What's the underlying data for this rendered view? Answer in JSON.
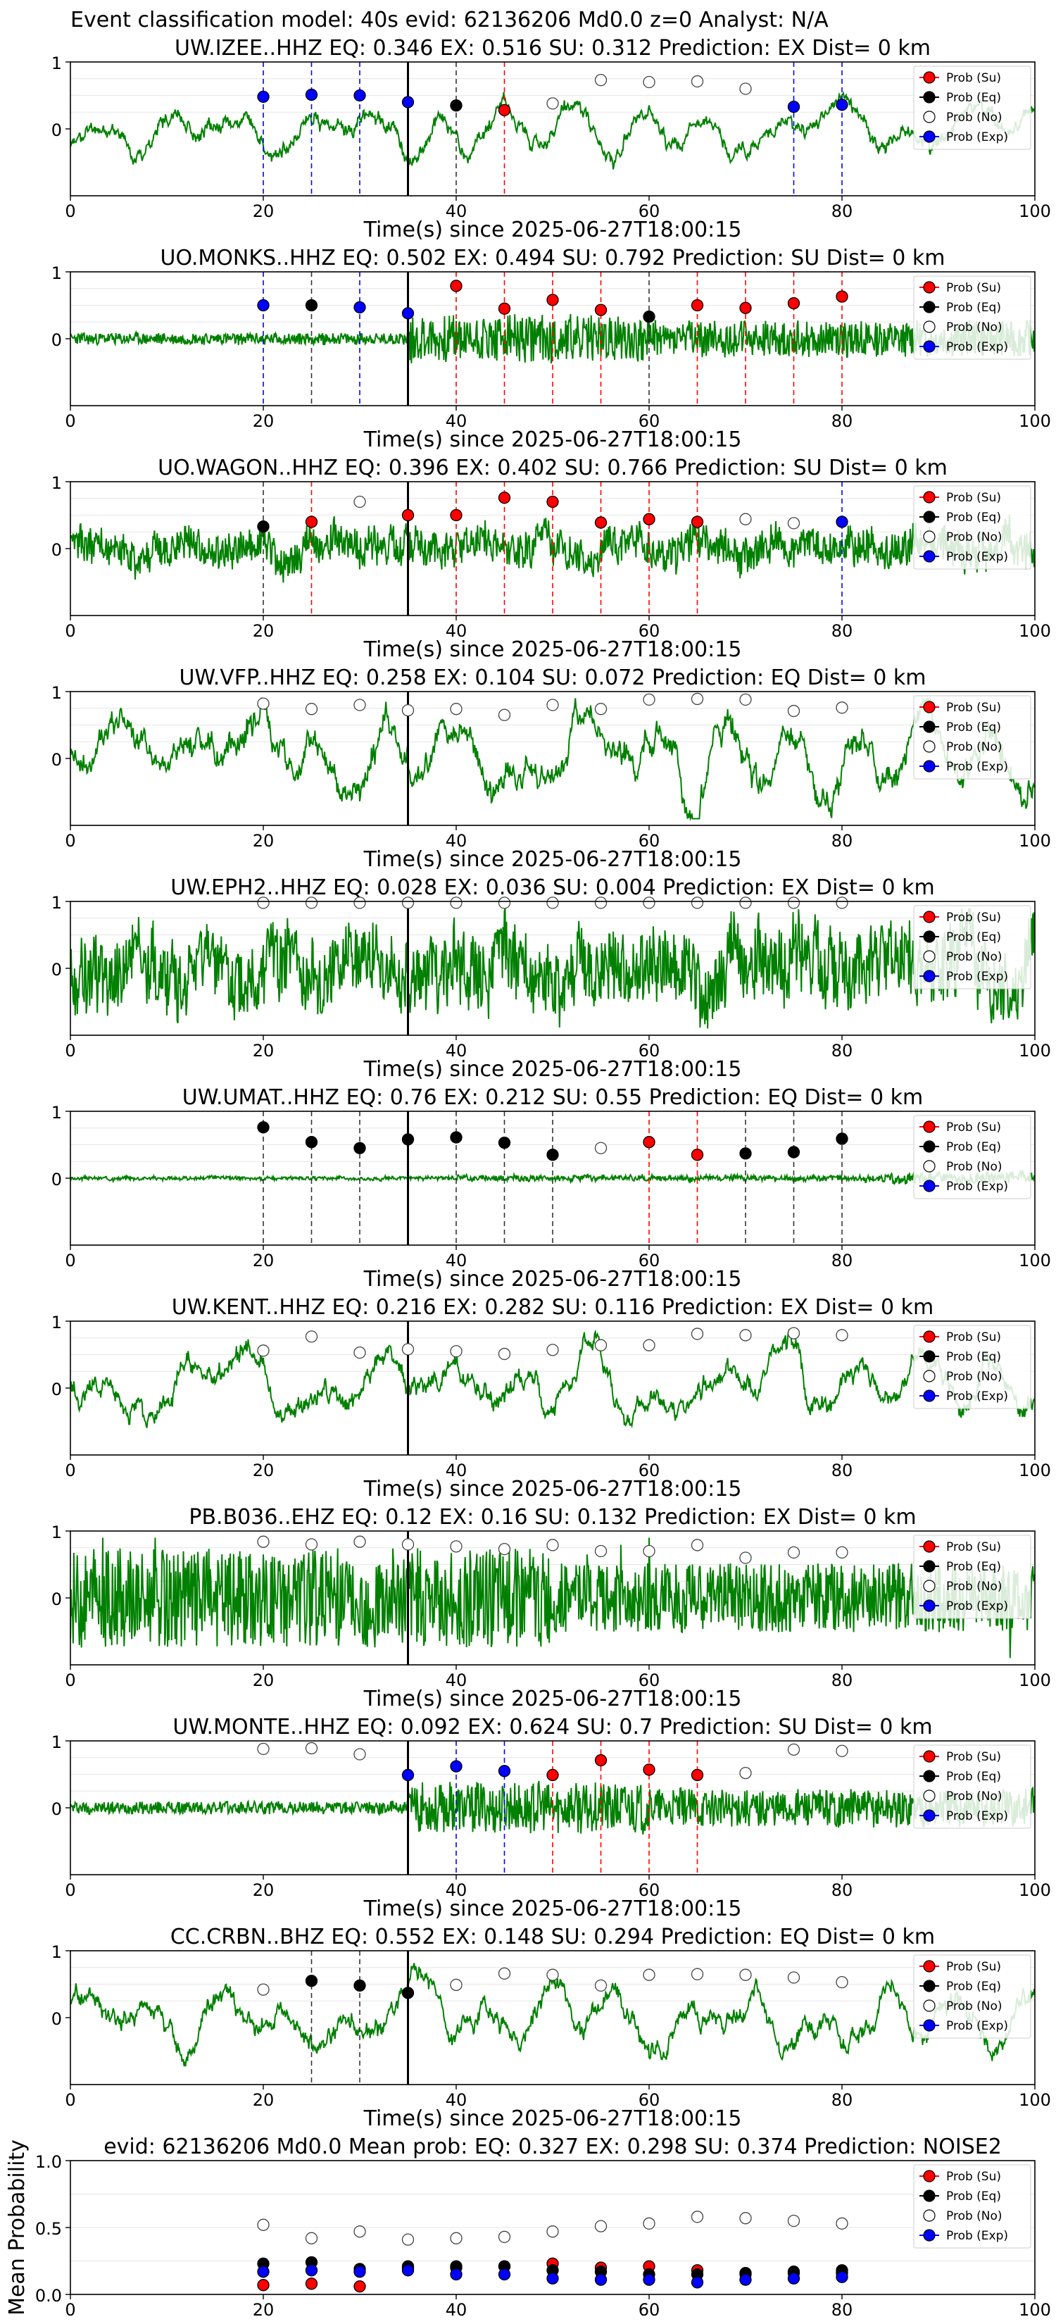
{
  "figure_title": "Event classification model: 40s evid: 62136206 Md0.0 z=0 Analyst: N/A",
  "xlabel": "Time(s) since 2025-06-27T18:00:15",
  "legend": [
    "Prob (Su)",
    "Prob (Eq)",
    "Prob (No)",
    "Prob (Exp)"
  ],
  "colors": {
    "Su": "#ff0000",
    "Eq": "#000000",
    "No": "#ffffff",
    "Exp": "#0000ff",
    "trace": "#008000",
    "origin_line": "#000000"
  },
  "chart_data": [
    {
      "type": "line",
      "title": "UW.IZEE..HHZ   EQ: 0.346  EX: 0.516  SU: 0.312   Prediction: EX    Dist= 0 km",
      "xlim": [
        0,
        100
      ],
      "ylim": [
        -1,
        1
      ],
      "xticks": [
        "0",
        "20",
        "40",
        "60",
        "80",
        "100"
      ],
      "yticks": [
        "1",
        "0"
      ],
      "origin_time": 35,
      "trace_style": "smooth",
      "seed": 11,
      "amp": 0.42,
      "points": [
        {
          "t": 20,
          "cls": "Exp",
          "p": 0.48
        },
        {
          "t": 25,
          "cls": "Exp",
          "p": 0.51
        },
        {
          "t": 30,
          "cls": "Exp",
          "p": 0.5
        },
        {
          "t": 35,
          "cls": "Exp",
          "p": 0.4
        },
        {
          "t": 40,
          "cls": "Eq",
          "p": 0.35
        },
        {
          "t": 45,
          "cls": "Su",
          "p": 0.28
        },
        {
          "t": 50,
          "cls": "No",
          "p": 0.38
        },
        {
          "t": 55,
          "cls": "No",
          "p": 0.73
        },
        {
          "t": 60,
          "cls": "No",
          "p": 0.7
        },
        {
          "t": 65,
          "cls": "No",
          "p": 0.71
        },
        {
          "t": 70,
          "cls": "No",
          "p": 0.6
        },
        {
          "t": 75,
          "cls": "Exp",
          "p": 0.33
        },
        {
          "t": 80,
          "cls": "Exp",
          "p": 0.36
        }
      ]
    },
    {
      "type": "line",
      "title": "UO.MONKS..HHZ   EQ: 0.502  EX: 0.494  SU: 0.792   Prediction: SU    Dist= 0 km",
      "xlim": [
        0,
        100
      ],
      "ylim": [
        -1,
        1
      ],
      "xticks": [
        "0",
        "20",
        "40",
        "60",
        "80",
        "100"
      ],
      "yticks": [
        "1",
        "0"
      ],
      "origin_time": 35,
      "trace_style": "burst",
      "seed": 23,
      "amp": 0.3,
      "points": [
        {
          "t": 20,
          "cls": "Exp",
          "p": 0.5
        },
        {
          "t": 25,
          "cls": "Eq",
          "p": 0.5
        },
        {
          "t": 30,
          "cls": "Exp",
          "p": 0.47
        },
        {
          "t": 35,
          "cls": "Exp",
          "p": 0.38
        },
        {
          "t": 40,
          "cls": "Su",
          "p": 0.79
        },
        {
          "t": 45,
          "cls": "Su",
          "p": 0.45
        },
        {
          "t": 50,
          "cls": "Su",
          "p": 0.58
        },
        {
          "t": 55,
          "cls": "Su",
          "p": 0.43
        },
        {
          "t": 60,
          "cls": "Eq",
          "p": 0.33
        },
        {
          "t": 65,
          "cls": "Su",
          "p": 0.5
        },
        {
          "t": 70,
          "cls": "Su",
          "p": 0.46
        },
        {
          "t": 75,
          "cls": "Su",
          "p": 0.53
        },
        {
          "t": 80,
          "cls": "Su",
          "p": 0.63
        }
      ]
    },
    {
      "type": "line",
      "title": "UO.WAGON..HHZ   EQ: 0.396  EX: 0.402  SU: 0.766   Prediction: SU    Dist= 0 km",
      "xlim": [
        0,
        100
      ],
      "ylim": [
        -1,
        1
      ],
      "xticks": [
        "0",
        "20",
        "40",
        "60",
        "80",
        "100"
      ],
      "yticks": [
        "1",
        "0"
      ],
      "origin_time": 35,
      "trace_style": "noisy",
      "seed": 37,
      "amp": 0.34,
      "points": [
        {
          "t": 20,
          "cls": "Eq",
          "p": 0.33
        },
        {
          "t": 25,
          "cls": "Su",
          "p": 0.4
        },
        {
          "t": 30,
          "cls": "No",
          "p": 0.7
        },
        {
          "t": 35,
          "cls": "Su",
          "p": 0.5
        },
        {
          "t": 40,
          "cls": "Su",
          "p": 0.5
        },
        {
          "t": 45,
          "cls": "Su",
          "p": 0.76
        },
        {
          "t": 50,
          "cls": "Su",
          "p": 0.7
        },
        {
          "t": 55,
          "cls": "Su",
          "p": 0.39
        },
        {
          "t": 60,
          "cls": "Su",
          "p": 0.44
        },
        {
          "t": 65,
          "cls": "Su",
          "p": 0.4
        },
        {
          "t": 70,
          "cls": "No",
          "p": 0.44
        },
        {
          "t": 75,
          "cls": "No",
          "p": 0.38
        },
        {
          "t": 80,
          "cls": "Exp",
          "p": 0.4
        }
      ]
    },
    {
      "type": "line",
      "title": "UW.VFP..HHZ   EQ: 0.258  EX: 0.104  SU: 0.072   Prediction: EQ    Dist= 0 km",
      "xlim": [
        0,
        100
      ],
      "ylim": [
        -1,
        1
      ],
      "xticks": [
        "0",
        "20",
        "40",
        "60",
        "80",
        "100"
      ],
      "yticks": [
        "1",
        "0"
      ],
      "origin_time": 35,
      "trace_style": "smooth",
      "seed": 41,
      "amp": 0.8,
      "points": [
        {
          "t": 20,
          "cls": "No",
          "p": 0.82
        },
        {
          "t": 25,
          "cls": "No",
          "p": 0.74
        },
        {
          "t": 30,
          "cls": "No",
          "p": 0.8
        },
        {
          "t": 35,
          "cls": "No",
          "p": 0.72
        },
        {
          "t": 40,
          "cls": "No",
          "p": 0.74
        },
        {
          "t": 45,
          "cls": "No",
          "p": 0.65
        },
        {
          "t": 50,
          "cls": "No",
          "p": 0.8
        },
        {
          "t": 55,
          "cls": "No",
          "p": 0.74
        },
        {
          "t": 60,
          "cls": "No",
          "p": 0.88
        },
        {
          "t": 65,
          "cls": "No",
          "p": 0.89
        },
        {
          "t": 70,
          "cls": "No",
          "p": 0.88
        },
        {
          "t": 75,
          "cls": "No",
          "p": 0.71
        },
        {
          "t": 80,
          "cls": "No",
          "p": 0.76
        }
      ]
    },
    {
      "type": "line",
      "title": "UW.EPH2..HHZ   EQ: 0.028  EX: 0.036  SU: 0.004   Prediction: EX    Dist= 0 km",
      "xlim": [
        0,
        100
      ],
      "ylim": [
        -1,
        1
      ],
      "xticks": [
        "0",
        "20",
        "40",
        "60",
        "80",
        "100"
      ],
      "yticks": [
        "1",
        "0"
      ],
      "origin_time": 35,
      "trace_style": "noisy",
      "seed": 53,
      "amp": 0.7,
      "points": [
        {
          "t": 20,
          "cls": "No",
          "p": 0.98
        },
        {
          "t": 25,
          "cls": "No",
          "p": 0.98
        },
        {
          "t": 30,
          "cls": "No",
          "p": 0.98
        },
        {
          "t": 35,
          "cls": "No",
          "p": 0.98
        },
        {
          "t": 40,
          "cls": "No",
          "p": 0.98
        },
        {
          "t": 45,
          "cls": "No",
          "p": 0.98
        },
        {
          "t": 50,
          "cls": "No",
          "p": 0.98
        },
        {
          "t": 55,
          "cls": "No",
          "p": 0.98
        },
        {
          "t": 60,
          "cls": "No",
          "p": 0.98
        },
        {
          "t": 65,
          "cls": "No",
          "p": 0.98
        },
        {
          "t": 70,
          "cls": "No",
          "p": 0.98
        },
        {
          "t": 75,
          "cls": "No",
          "p": 0.98
        },
        {
          "t": 80,
          "cls": "No",
          "p": 0.98
        }
      ]
    },
    {
      "type": "line",
      "title": "UW.UMAT..HHZ   EQ: 0.76  EX: 0.212  SU: 0.55   Prediction: EQ    Dist= 0 km",
      "xlim": [
        0,
        100
      ],
      "ylim": [
        -1,
        1
      ],
      "xticks": [
        "0",
        "20",
        "40",
        "60",
        "80",
        "100"
      ],
      "yticks": [
        "1",
        "0"
      ],
      "origin_time": 35,
      "trace_style": "quiet",
      "seed": 67,
      "amp": 0.12,
      "points": [
        {
          "t": 20,
          "cls": "Eq",
          "p": 0.76
        },
        {
          "t": 25,
          "cls": "Eq",
          "p": 0.54
        },
        {
          "t": 30,
          "cls": "Eq",
          "p": 0.45
        },
        {
          "t": 35,
          "cls": "Eq",
          "p": 0.58
        },
        {
          "t": 40,
          "cls": "Eq",
          "p": 0.61
        },
        {
          "t": 45,
          "cls": "Eq",
          "p": 0.53
        },
        {
          "t": 50,
          "cls": "Eq",
          "p": 0.35
        },
        {
          "t": 55,
          "cls": "No",
          "p": 0.45
        },
        {
          "t": 60,
          "cls": "Su",
          "p": 0.54
        },
        {
          "t": 65,
          "cls": "Su",
          "p": 0.35
        },
        {
          "t": 70,
          "cls": "Eq",
          "p": 0.37
        },
        {
          "t": 75,
          "cls": "Eq",
          "p": 0.39
        },
        {
          "t": 80,
          "cls": "Eq",
          "p": 0.59
        }
      ]
    },
    {
      "type": "line",
      "title": "UW.KENT..HHZ   EQ: 0.216  EX: 0.282  SU: 0.116   Prediction: EX    Dist= 0 km",
      "xlim": [
        0,
        100
      ],
      "ylim": [
        -1,
        1
      ],
      "xticks": [
        "0",
        "20",
        "40",
        "60",
        "80",
        "100"
      ],
      "yticks": [
        "1",
        "0"
      ],
      "origin_time": 35,
      "trace_style": "smooth",
      "seed": 79,
      "amp": 0.6,
      "points": [
        {
          "t": 20,
          "cls": "No",
          "p": 0.56
        },
        {
          "t": 25,
          "cls": "No",
          "p": 0.77
        },
        {
          "t": 30,
          "cls": "No",
          "p": 0.53
        },
        {
          "t": 35,
          "cls": "No",
          "p": 0.58
        },
        {
          "t": 40,
          "cls": "No",
          "p": 0.55
        },
        {
          "t": 45,
          "cls": "No",
          "p": 0.51
        },
        {
          "t": 50,
          "cls": "No",
          "p": 0.57
        },
        {
          "t": 55,
          "cls": "No",
          "p": 0.64
        },
        {
          "t": 60,
          "cls": "No",
          "p": 0.64
        },
        {
          "t": 65,
          "cls": "No",
          "p": 0.81
        },
        {
          "t": 70,
          "cls": "No",
          "p": 0.79
        },
        {
          "t": 75,
          "cls": "No",
          "p": 0.82
        },
        {
          "t": 80,
          "cls": "No",
          "p": 0.79
        }
      ]
    },
    {
      "type": "line",
      "title": "PB.B036..EHZ   EQ: 0.12  EX: 0.16  SU: 0.132   Prediction: EX    Dist= 0 km",
      "xlim": [
        0,
        100
      ],
      "ylim": [
        -1,
        1
      ],
      "xticks": [
        "0",
        "20",
        "40",
        "60",
        "80",
        "100"
      ],
      "yticks": [
        "1",
        "0"
      ],
      "origin_time": 35,
      "trace_style": "spiky",
      "seed": 83,
      "amp": 0.75,
      "points": [
        {
          "t": 20,
          "cls": "No",
          "p": 0.84
        },
        {
          "t": 25,
          "cls": "No",
          "p": 0.8
        },
        {
          "t": 30,
          "cls": "No",
          "p": 0.84
        },
        {
          "t": 35,
          "cls": "No",
          "p": 0.8
        },
        {
          "t": 40,
          "cls": "No",
          "p": 0.77
        },
        {
          "t": 45,
          "cls": "No",
          "p": 0.73
        },
        {
          "t": 50,
          "cls": "No",
          "p": 0.79
        },
        {
          "t": 55,
          "cls": "No",
          "p": 0.7
        },
        {
          "t": 60,
          "cls": "No",
          "p": 0.7
        },
        {
          "t": 65,
          "cls": "No",
          "p": 0.79
        },
        {
          "t": 70,
          "cls": "No",
          "p": 0.6
        },
        {
          "t": 75,
          "cls": "No",
          "p": 0.68
        },
        {
          "t": 80,
          "cls": "No",
          "p": 0.68
        }
      ]
    },
    {
      "type": "line",
      "title": "UW.MONTE..HHZ   EQ: 0.092  EX: 0.624  SU: 0.7   Prediction: SU    Dist= 0 km",
      "xlim": [
        0,
        100
      ],
      "ylim": [
        -1,
        1
      ],
      "xticks": [
        "0",
        "20",
        "40",
        "60",
        "80",
        "100"
      ],
      "yticks": [
        "1",
        "0"
      ],
      "origin_time": 35,
      "trace_style": "burst",
      "seed": 97,
      "amp": 0.32,
      "points": [
        {
          "t": 20,
          "cls": "No",
          "p": 0.88
        },
        {
          "t": 25,
          "cls": "No",
          "p": 0.89
        },
        {
          "t": 30,
          "cls": "No",
          "p": 0.8
        },
        {
          "t": 35,
          "cls": "Exp",
          "p": 0.49
        },
        {
          "t": 40,
          "cls": "Exp",
          "p": 0.62
        },
        {
          "t": 45,
          "cls": "Exp",
          "p": 0.55
        },
        {
          "t": 50,
          "cls": "Su",
          "p": 0.49
        },
        {
          "t": 55,
          "cls": "Su",
          "p": 0.71
        },
        {
          "t": 60,
          "cls": "Su",
          "p": 0.57
        },
        {
          "t": 65,
          "cls": "Su",
          "p": 0.49
        },
        {
          "t": 70,
          "cls": "No",
          "p": 0.52
        },
        {
          "t": 75,
          "cls": "No",
          "p": 0.87
        },
        {
          "t": 80,
          "cls": "No",
          "p": 0.85
        }
      ]
    },
    {
      "type": "line",
      "title": "CC.CRBN..BHZ   EQ: 0.552  EX: 0.148  SU: 0.294   Prediction: EQ    Dist= 0 km",
      "xlim": [
        0,
        100
      ],
      "ylim": [
        -1,
        1
      ],
      "xticks": [
        "0",
        "20",
        "40",
        "60",
        "80",
        "100"
      ],
      "yticks": [
        "1",
        "0"
      ],
      "origin_time": 35,
      "trace_style": "smooth",
      "seed": 101,
      "amp": 0.55,
      "points": [
        {
          "t": 20,
          "cls": "No",
          "p": 0.42
        },
        {
          "t": 25,
          "cls": "Eq",
          "p": 0.55
        },
        {
          "t": 30,
          "cls": "Eq",
          "p": 0.48
        },
        {
          "t": 35,
          "cls": "Eq",
          "p": 0.37
        },
        {
          "t": 40,
          "cls": "No",
          "p": 0.49
        },
        {
          "t": 45,
          "cls": "No",
          "p": 0.66
        },
        {
          "t": 50,
          "cls": "No",
          "p": 0.64
        },
        {
          "t": 55,
          "cls": "No",
          "p": 0.48
        },
        {
          "t": 60,
          "cls": "No",
          "p": 0.64
        },
        {
          "t": 65,
          "cls": "No",
          "p": 0.65
        },
        {
          "t": 70,
          "cls": "No",
          "p": 0.64
        },
        {
          "t": 75,
          "cls": "No",
          "p": 0.6
        },
        {
          "t": 80,
          "cls": "No",
          "p": 0.53
        }
      ]
    },
    {
      "type": "scatter",
      "title": "evid: 62136206  Md0.0   Mean prob:   EQ: 0.327  EX: 0.298  SU: 0.374   Prediction: NOISE2",
      "ylabel": "Mean Probability",
      "xlim": [
        0,
        100
      ],
      "ylim": [
        0,
        1
      ],
      "xticks": [
        "0",
        "20",
        "40",
        "60",
        "80",
        "100"
      ],
      "yticks": [
        "1.0",
        "0.5",
        "0.0"
      ],
      "x": [
        20,
        25,
        30,
        35,
        40,
        45,
        50,
        55,
        60,
        65,
        70,
        75,
        80
      ],
      "series": [
        {
          "name": "Prob (Su)",
          "values": [
            0.07,
            0.08,
            0.06,
            0.2,
            0.2,
            0.21,
            0.23,
            0.2,
            0.21,
            0.18,
            0.15,
            0.16,
            0.16
          ]
        },
        {
          "name": "Prob (Eq)",
          "values": [
            0.23,
            0.24,
            0.19,
            0.21,
            0.21,
            0.21,
            0.18,
            0.17,
            0.15,
            0.15,
            0.16,
            0.17,
            0.18
          ]
        },
        {
          "name": "Prob (No)",
          "values": [
            0.52,
            0.42,
            0.47,
            0.41,
            0.42,
            0.43,
            0.47,
            0.51,
            0.53,
            0.58,
            0.57,
            0.55,
            0.53
          ]
        },
        {
          "name": "Prob (Exp)",
          "values": [
            0.17,
            0.18,
            0.17,
            0.18,
            0.15,
            0.15,
            0.12,
            0.11,
            0.11,
            0.09,
            0.11,
            0.12,
            0.13
          ]
        }
      ]
    }
  ]
}
